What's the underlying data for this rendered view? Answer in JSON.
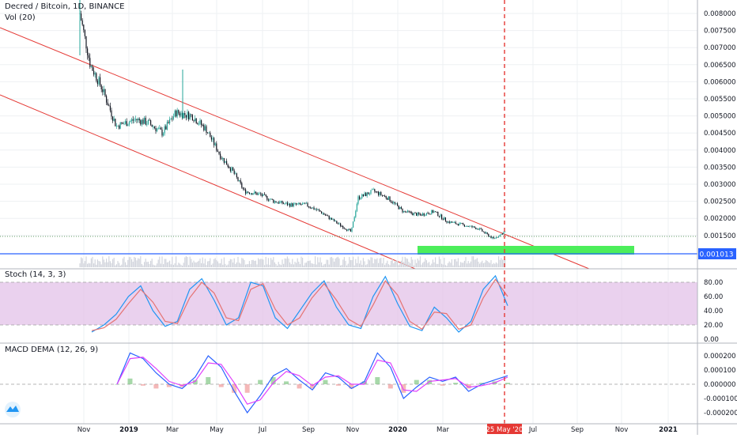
{
  "header": {
    "symbol": "Decred / Bitcoin, 1D, BINANCE",
    "volume": "Vol (20)"
  },
  "panes": {
    "stoch_label": "Stoch (14, 3, 3)",
    "macd_label": "MACD DEMA (12, 26, 9)"
  },
  "price_axis": {
    "ticks": [
      "0.008000",
      "0.007500",
      "0.007000",
      "0.006500",
      "0.006000",
      "0.005500",
      "0.005000",
      "0.004500",
      "0.004000",
      "0.003500",
      "0.003000",
      "0.002500",
      "0.002000",
      "0.001500"
    ],
    "current_price": "0.001013"
  },
  "stoch_axis": {
    "ticks": [
      "80.00",
      "60.00",
      "40.00",
      "20.00",
      "0.00"
    ]
  },
  "macd_axis": {
    "ticks": [
      "0.000200",
      "0.000100",
      "0.000000",
      "-0.000100",
      "-0.000200"
    ]
  },
  "time_axis": {
    "labels": [
      "Nov",
      "2019",
      "Mar",
      "May",
      "Jul",
      "Sep",
      "Nov",
      "2020",
      "Mar",
      "Jul",
      "Sep",
      "Nov",
      "2021"
    ],
    "cursor_label": "25 May '20"
  },
  "colors": {
    "candle_up": "#26a69a",
    "candle_down": "#131722",
    "channel_line": "#e53935",
    "support_line": "#2962ff",
    "support_zone": "#4cee5b",
    "stoch_band": "#e1bee7",
    "stoch_k": "#2196f3",
    "stoch_d": "#e57373",
    "macd_line": "#2962ff",
    "signal_line": "#e040fb",
    "cursor": "#e53935"
  },
  "chart_data": [
    {
      "type": "line",
      "title": "Decred / Bitcoin, 1D, BINANCE",
      "x": [
        "2018-11-01",
        "2018-11-15",
        "2018-12-01",
        "2018-12-20",
        "2019-01-15",
        "2019-02-01",
        "2019-02-20",
        "2019-03-10",
        "2019-04-01",
        "2019-04-20",
        "2019-05-10",
        "2019-05-25",
        "2019-06-10",
        "2019-07-01",
        "2019-07-20",
        "2019-08-10",
        "2019-09-01",
        "2019-09-20",
        "2019-10-10",
        "2019-11-01",
        "2019-11-10",
        "2019-12-01",
        "2019-12-20",
        "2020-01-10",
        "2020-02-01",
        "2020-02-20",
        "2020-03-10",
        "2020-04-01",
        "2020-04-20",
        "2020-05-10",
        "2020-05-25"
      ],
      "series": [
        {
          "values": [
            0.008,
            0.0065,
            0.0058,
            0.0047,
            0.0049,
            0.0048,
            0.0045,
            0.0051,
            0.005,
            0.0046,
            0.0038,
            0.0034,
            0.0028,
            0.0027,
            0.0025,
            0.0024,
            0.0024,
            0.0022,
            0.0019,
            0.0016,
            0.0026,
            0.0028,
            0.0026,
            0.0022,
            0.0021,
            0.0022,
            0.0019,
            0.0018,
            0.0017,
            0.0014,
            0.0016
          ]
        }
      ],
      "ylim": [
        0.001,
        0.0082
      ],
      "annotations": {
        "current_price": 0.001013,
        "support_zone": [
          0.001,
          0.0013
        ],
        "channel_lines": 2,
        "cursor_date": "2020-05-25"
      },
      "grid": true
    },
    {
      "type": "line",
      "title": "Stoch (14, 3, 3)",
      "ylim": [
        0,
        90
      ],
      "bands": [
        20,
        80
      ],
      "series": [
        {
          "values": [
            10,
            20,
            35,
            60,
            75,
            40,
            18,
            25,
            70,
            85,
            55,
            20,
            30,
            80,
            75,
            30,
            15,
            40,
            65,
            82,
            45,
            20,
            15,
            60,
            88,
            50,
            18,
            12,
            45,
            30,
            10,
            25,
            70,
            89,
            47
          ]
        },
        {
          "values": [
            12,
            16,
            28,
            50,
            70,
            52,
            25,
            22,
            58,
            80,
            65,
            30,
            26,
            70,
            78,
            42,
            20,
            30,
            58,
            78,
            55,
            28,
            18,
            48,
            82,
            62,
            25,
            14,
            38,
            36,
            14,
            20,
            58,
            84,
            60
          ]
        }
      ]
    },
    {
      "type": "line",
      "title": "MACD DEMA (12, 26, 9)",
      "ylim": [
        -0.00025,
        0.00025
      ],
      "series": [
        {
          "values": [
            0.0,
            0.00022,
            0.00018,
            8e-05,
            0.0,
            -3e-05,
            5e-05,
            0.0002,
            0.00012,
            -5e-05,
            -0.0002,
            -8e-05,
            6e-05,
            0.00011,
            3e-05,
            -4e-05,
            8e-05,
            5e-05,
            -3e-05,
            2e-05,
            0.00022,
            0.00012,
            -0.0001,
            -2e-05,
            5e-05,
            2e-05,
            5e-05,
            -5e-05,
            0.0,
            3e-05,
            6e-05
          ]
        },
        {
          "values": [
            0.0,
            0.00018,
            0.00019,
            0.00011,
            2e-05,
            -1e-05,
            2e-05,
            0.00015,
            0.00014,
            1e-05,
            -0.00014,
            -0.00011,
            1e-05,
            9e-05,
            6e-05,
            -1e-05,
            5e-05,
            6e-05,
            0.0,
            0.0,
            0.00017,
            0.00015,
            -4e-05,
            -5e-05,
            2e-05,
            3e-05,
            4e-05,
            -2e-05,
            -1e-05,
            1e-05,
            5e-05
          ]
        }
      ]
    }
  ]
}
